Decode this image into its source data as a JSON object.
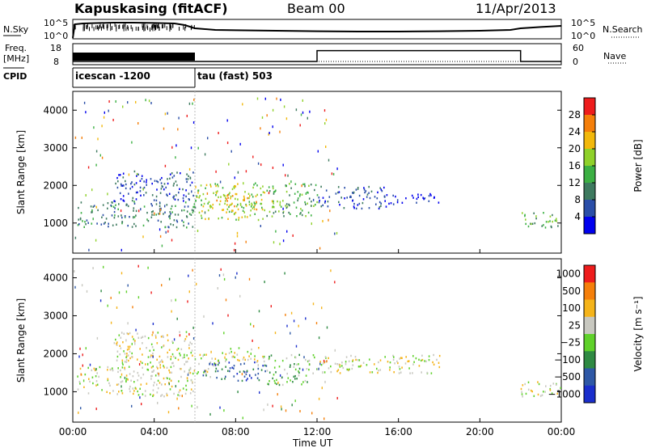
{
  "header": {
    "station": "Kapuskasing (fitACF)",
    "beam": "Beam 00",
    "date": "11/Apr/2013"
  },
  "chart_data": [
    {
      "type": "line",
      "name": "noise-panel",
      "left_label": "N.Sky",
      "right_label": "N.Search",
      "left_ticks": [
        "10^5",
        "10^0"
      ],
      "right_ticks": [
        "10^5",
        "10^0"
      ],
      "x_range_hours": [
        0,
        24
      ],
      "series": [
        {
          "name": "N.Sky",
          "style": "solid",
          "x": [
            0,
            0.1,
            0.5,
            1,
            2,
            3,
            4,
            5,
            5.5,
            6,
            7,
            8,
            10,
            12,
            14,
            16,
            18,
            20,
            21.5,
            22,
            23,
            24
          ],
          "y": [
            0.0,
            0.85,
            0.9,
            0.92,
            0.95,
            0.95,
            0.93,
            0.9,
            0.8,
            0.6,
            0.5,
            0.48,
            0.45,
            0.42,
            0.4,
            0.4,
            0.42,
            0.45,
            0.5,
            0.6,
            0.68,
            0.75
          ]
        }
      ]
    },
    {
      "type": "line",
      "name": "frequency-panel",
      "left_label": "Freq.\n[MHz]",
      "right_label": "Nave",
      "left_ticks": [
        "18",
        "8"
      ],
      "right_ticks": [
        "60",
        "0"
      ],
      "freq_band_hours": [
        0,
        6
      ],
      "nave_steps": {
        "x": [
          0,
          12,
          12,
          22,
          22,
          24
        ],
        "y": [
          7,
          7,
          55,
          55,
          7,
          7
        ]
      }
    },
    {
      "type": "table",
      "name": "cpid-bar",
      "label": "CPID",
      "segments": [
        {
          "label": "icescan -1200",
          "start_hour": 0,
          "end_hour": 6
        },
        {
          "label": "tau (fast) 503",
          "start_hour": 6,
          "end_hour": 24
        }
      ]
    },
    {
      "type": "heatmap",
      "name": "power-panel",
      "ylabel": "Slant Range [km]",
      "yticks": [
        1000,
        2000,
        3000,
        4000
      ],
      "ylim": [
        200,
        4500
      ],
      "colorbar_label": "Power [dB]",
      "colorbar_ticks": [
        4,
        8,
        12,
        16,
        20,
        24,
        28
      ],
      "colors": [
        "#0000ee",
        "#2a4ea8",
        "#3e7a5f",
        "#3cb043",
        "#8fd12a",
        "#f2b80b",
        "#f57f0a",
        "#ee1c1c"
      ],
      "echo_regions": [
        {
          "x0": 0.2,
          "x1": 6,
          "y0": 900,
          "y1": 1600,
          "level": 2
        },
        {
          "x0": 2,
          "x1": 6,
          "y0": 1600,
          "y1": 2400,
          "level": 1
        },
        {
          "x0": 6,
          "x1": 9.5,
          "y0": 1100,
          "y1": 2100,
          "level": 4
        },
        {
          "x0": 7,
          "x1": 9,
          "y0": 1300,
          "y1": 1800,
          "level": 5
        },
        {
          "x0": 9.5,
          "x1": 12,
          "y0": 1200,
          "y1": 2100,
          "level": 3
        },
        {
          "x0": 12,
          "x1": 15.5,
          "y0": 1400,
          "y1": 2000,
          "level": 1
        },
        {
          "x0": 15.5,
          "x1": 18,
          "y0": 1500,
          "y1": 1800,
          "level": 0
        },
        {
          "x0": 22,
          "x1": 24,
          "y0": 900,
          "y1": 1300,
          "level": 3
        }
      ]
    },
    {
      "type": "heatmap",
      "name": "velocity-panel",
      "ylabel": "Slant Range [km]",
      "yticks": [
        1000,
        2000,
        3000,
        4000
      ],
      "ylim": [
        200,
        4500
      ],
      "colorbar_label": "Velocity [m s⁻¹]",
      "colorbar_ticks": [
        "1000",
        "500",
        "100",
        "25",
        "−25",
        "−100",
        "−500",
        "−1000"
      ],
      "colors": [
        "#1a2ecc",
        "#2e58a6",
        "#2f8a43",
        "#5fd12a",
        "#c8c8c0",
        "#f5b41a",
        "#f57f0a",
        "#ee1c1c"
      ],
      "echo_regions": [
        {
          "x0": 0.2,
          "x1": 6,
          "y0": 900,
          "y1": 1700,
          "level": 4
        },
        {
          "x0": 2,
          "x1": 6,
          "y0": 1700,
          "y1": 2600,
          "level": 4
        },
        {
          "x0": 6,
          "x1": 7,
          "y0": 1400,
          "y1": 2000,
          "level": 4
        },
        {
          "x0": 6.3,
          "x1": 9.5,
          "y0": 1300,
          "y1": 1800,
          "level": 1
        },
        {
          "x0": 7,
          "x1": 9.5,
          "y0": 1800,
          "y1": 2200,
          "level": 4
        },
        {
          "x0": 9.5,
          "x1": 11.5,
          "y0": 1200,
          "y1": 2000,
          "level": 3
        },
        {
          "x0": 11.5,
          "x1": 18,
          "y0": 1500,
          "y1": 2000,
          "level": 4
        },
        {
          "x0": 22,
          "x1": 24,
          "y0": 900,
          "y1": 1300,
          "level": 4
        }
      ]
    }
  ],
  "xaxis": {
    "label": "Time UT",
    "ticks": [
      "00:00",
      "04:00",
      "08:00",
      "12:00",
      "16:00",
      "20:00",
      "00:00"
    ]
  }
}
